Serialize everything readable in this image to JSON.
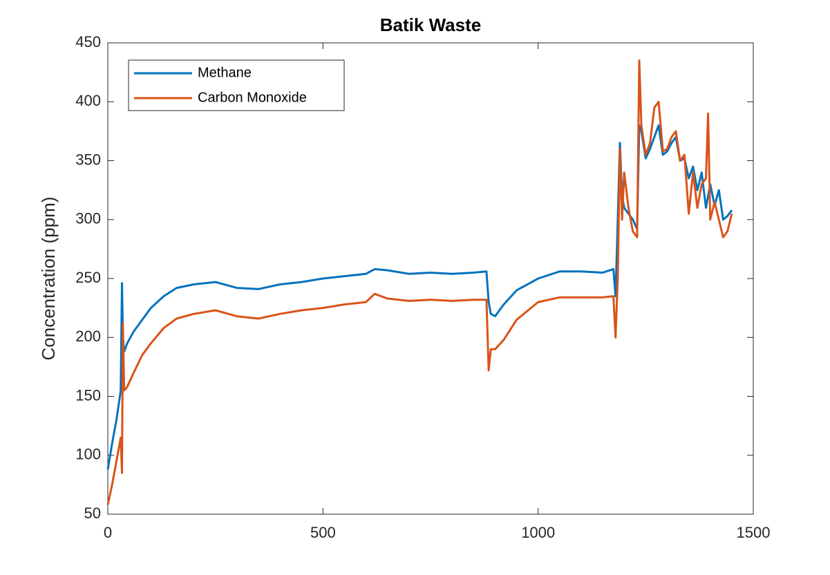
{
  "chart_data": {
    "type": "line",
    "title": "Batik Waste",
    "y_label": "Concentration (ppm)",
    "x": [
      0,
      10,
      20,
      30,
      33,
      35,
      38,
      45,
      60,
      80,
      100,
      130,
      160,
      200,
      250,
      300,
      350,
      400,
      450,
      500,
      550,
      600,
      620,
      650,
      700,
      750,
      800,
      850,
      880,
      885,
      890,
      900,
      920,
      950,
      1000,
      1050,
      1100,
      1150,
      1175,
      1180,
      1185,
      1190,
      1195,
      1200,
      1210,
      1220,
      1230,
      1235,
      1240,
      1250,
      1260,
      1270,
      1280,
      1290,
      1300,
      1310,
      1320,
      1330,
      1340,
      1350,
      1360,
      1370,
      1380,
      1390,
      1395,
      1400,
      1410,
      1420,
      1430,
      1440,
      1450
    ],
    "series": [
      {
        "name": "Methane",
        "color": "#0072bd",
        "values": [
          88,
          110,
          130,
          155,
          246,
          200,
          188,
          195,
          205,
          215,
          225,
          235,
          242,
          245,
          247,
          242,
          241,
          245,
          247,
          250,
          252,
          254,
          258,
          257,
          254,
          255,
          254,
          255,
          256,
          230,
          220,
          218,
          228,
          240,
          250,
          256,
          256,
          255,
          258,
          235,
          300,
          365,
          320,
          310,
          305,
          300,
          292,
          380,
          375,
          352,
          360,
          370,
          380,
          355,
          358,
          365,
          370,
          350,
          352,
          335,
          345,
          325,
          340,
          310,
          320,
          330,
          312,
          325,
          300,
          303,
          308
        ]
      },
      {
        "name": "Carbon Monoxide",
        "color": "#d95319",
        "values": [
          58,
          75,
          95,
          115,
          85,
          212,
          155,
          158,
          170,
          185,
          195,
          208,
          216,
          220,
          223,
          218,
          216,
          220,
          223,
          225,
          228,
          230,
          237,
          233,
          231,
          232,
          231,
          232,
          232,
          172,
          190,
          190,
          198,
          215,
          230,
          234,
          234,
          234,
          235,
          200,
          250,
          360,
          300,
          340,
          310,
          290,
          285,
          435,
          380,
          355,
          365,
          395,
          400,
          358,
          360,
          370,
          375,
          350,
          355,
          305,
          340,
          310,
          330,
          335,
          390,
          300,
          315,
          300,
          285,
          290,
          305
        ]
      }
    ],
    "xlim": [
      0,
      1500
    ],
    "xticks": [
      0,
      500,
      1000,
      1500
    ],
    "ylim": [
      50,
      450
    ],
    "yticks": [
      50,
      100,
      150,
      200,
      250,
      300,
      350,
      400,
      450
    ],
    "legend": "upper left"
  }
}
